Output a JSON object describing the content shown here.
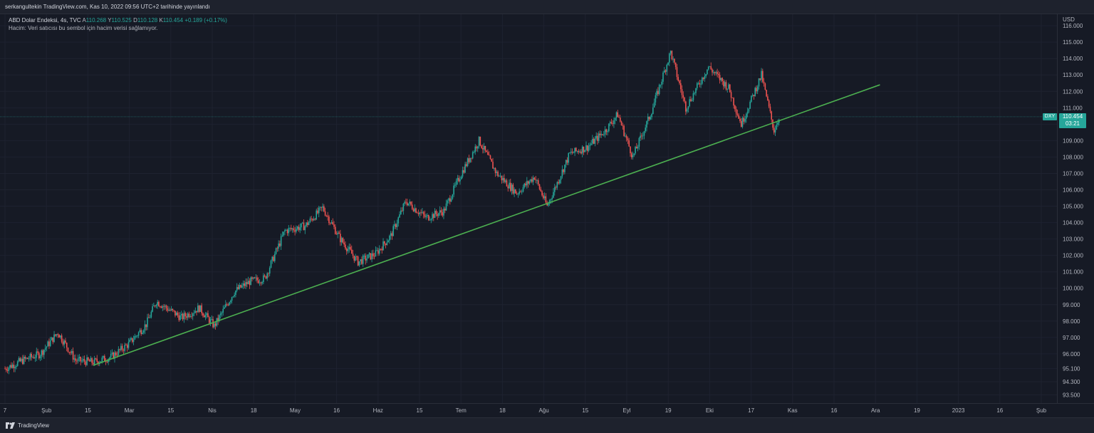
{
  "header": {
    "published_text": "serkangultekin TradingView.com, Kas 10, 2022 09:56 UTC+2 tarihinde yayınlandı"
  },
  "legend": {
    "symbol_line": "ABD Dolar Endeksi, 4s, TVC",
    "open_key": "A",
    "open_val": "110.268",
    "high_key": "Y",
    "high_val": "110.525",
    "low_key": "D",
    "low_val": "110.128",
    "close_key": "K",
    "close_val": "110.454",
    "change": "+0.189 (+0.17%)",
    "volume_note": "Hacim: Veri satıcısı bu sembol için hacim verisi sağlamıyor."
  },
  "price_tag": {
    "symbol": "DXY",
    "price": "110.454",
    "countdown": "03:21"
  },
  "footer": {
    "brand": "TradingView"
  },
  "colors": {
    "up": "#26a69a",
    "down": "#ef5350",
    "trendline": "#4caf50",
    "background": "#161a25"
  },
  "chart_data": {
    "type": "candlestick",
    "y_unit": "USD",
    "ylim": [
      93.0,
      116.7
    ],
    "y_ticks": [
      "116.000",
      "115.000",
      "114.000",
      "113.000",
      "112.000",
      "111.000",
      "110.000",
      "109.000",
      "108.000",
      "107.000",
      "106.000",
      "105.000",
      "104.000",
      "103.000",
      "102.000",
      "101.000",
      "100.000",
      "99.000",
      "98.000",
      "97.000",
      "96.000",
      "95.100",
      "94.300",
      "93.500"
    ],
    "x_ticks": [
      "7",
      "Şub",
      "15",
      "Mar",
      "15",
      "Nis",
      "18",
      "May",
      "16",
      "Haz",
      "15",
      "Tem",
      "18",
      "Ağu",
      "15",
      "Eyl",
      "19",
      "Eki",
      "17",
      "Kas",
      "16",
      "Ara",
      "19",
      "2023",
      "16",
      "Şub"
    ],
    "x_range": [
      "2022-01-07",
      "2023-02-22"
    ],
    "price_path": [
      [
        "2022-01-07",
        95.1
      ],
      [
        "2022-01-14",
        95.6
      ],
      [
        "2022-01-21",
        96.0
      ],
      [
        "2022-01-28",
        97.3
      ],
      [
        "2022-02-04",
        95.6
      ],
      [
        "2022-02-11",
        95.5
      ],
      [
        "2022-02-18",
        95.8
      ],
      [
        "2022-02-25",
        96.6
      ],
      [
        "2022-03-04",
        97.8
      ],
      [
        "2022-03-08",
        99.2
      ],
      [
        "2022-03-18",
        98.2
      ],
      [
        "2022-03-25",
        98.8
      ],
      [
        "2022-03-31",
        97.7
      ],
      [
        "2022-04-08",
        99.8
      ],
      [
        "2022-04-14",
        100.4
      ],
      [
        "2022-04-20",
        100.6
      ],
      [
        "2022-04-28",
        103.5
      ],
      [
        "2022-05-06",
        103.8
      ],
      [
        "2022-05-13",
        104.9
      ],
      [
        "2022-05-20",
        103.0
      ],
      [
        "2022-05-27",
        101.6
      ],
      [
        "2022-06-03",
        102.1
      ],
      [
        "2022-06-09",
        103.2
      ],
      [
        "2022-06-15",
        105.3
      ],
      [
        "2022-06-23",
        104.3
      ],
      [
        "2022-06-30",
        104.7
      ],
      [
        "2022-07-07",
        107.0
      ],
      [
        "2022-07-14",
        109.0
      ],
      [
        "2022-07-21",
        107.0
      ],
      [
        "2022-07-29",
        105.8
      ],
      [
        "2022-08-05",
        106.8
      ],
      [
        "2022-08-10",
        105.0
      ],
      [
        "2022-08-19",
        108.2
      ],
      [
        "2022-08-26",
        108.6
      ],
      [
        "2022-09-02",
        109.6
      ],
      [
        "2022-09-07",
        110.6
      ],
      [
        "2022-09-13",
        108.0
      ],
      [
        "2022-09-20",
        110.6
      ],
      [
        "2022-09-28",
        114.4
      ],
      [
        "2022-10-04",
        111.0
      ],
      [
        "2022-10-13",
        113.5
      ],
      [
        "2022-10-21",
        112.2
      ],
      [
        "2022-10-26",
        110.0
      ],
      [
        "2022-11-03",
        113.0
      ],
      [
        "2022-11-08",
        109.6
      ],
      [
        "2022-11-10",
        110.45
      ]
    ],
    "trendline": {
      "start": [
        "2022-02-11",
        95.3
      ],
      "end": [
        "2022-12-20",
        112.4
      ]
    },
    "last_price": 110.454
  }
}
